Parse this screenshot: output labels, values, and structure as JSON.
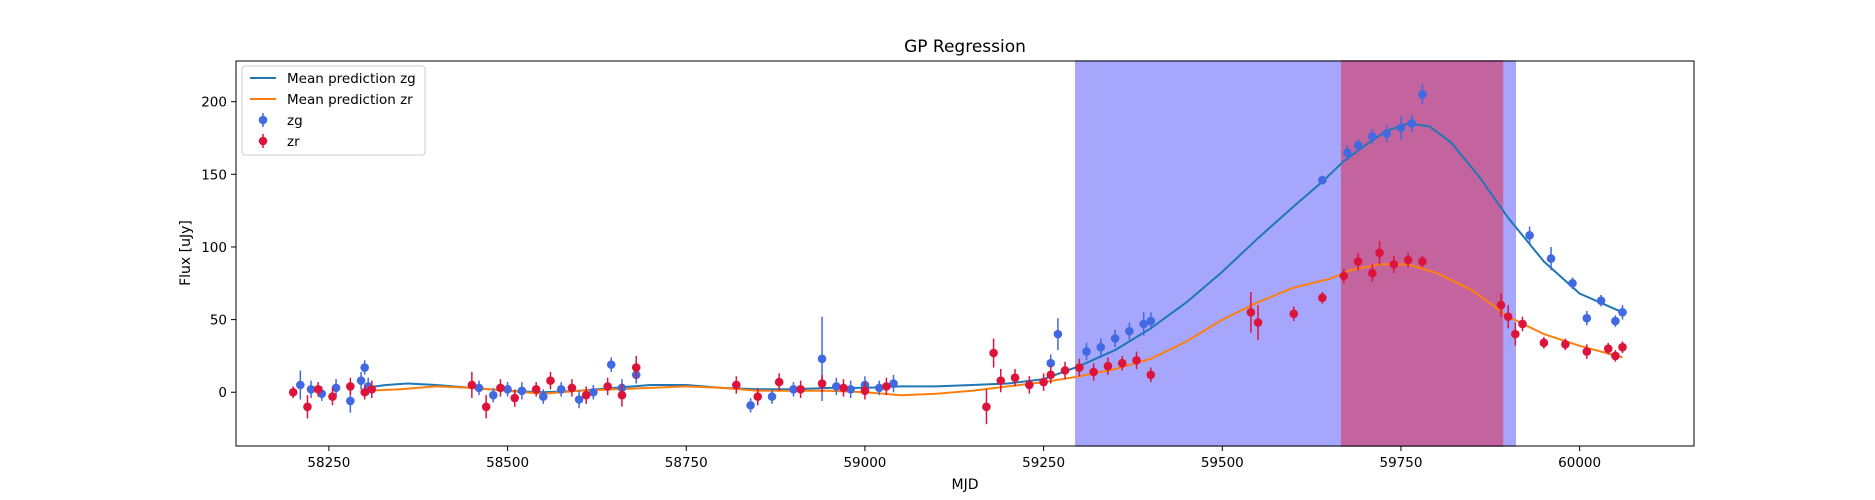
{
  "chart_data": {
    "type": "scatter",
    "title": "GP Regression",
    "xlabel": "MJD",
    "ylabel": "Flux [uJy]",
    "xlim": [
      58120,
      60160
    ],
    "ylim": [
      -37,
      228
    ],
    "xticks": [
      58250,
      58500,
      58750,
      59000,
      59250,
      59500,
      59750,
      60000
    ],
    "yticks": [
      0,
      50,
      100,
      150,
      200
    ],
    "grid": false,
    "legend_location": "upper left",
    "legend": [
      "Mean prediction zg",
      "Mean prediction zr",
      "zg",
      "zr"
    ],
    "shaded_regions": [
      {
        "x0": 59295,
        "x1": 59910,
        "color": "#a6a6fc"
      },
      {
        "x0": 59667,
        "x1": 59892,
        "color": "#c4649f"
      }
    ],
    "series": [
      {
        "name": "Mean prediction zg",
        "kind": "line",
        "color": "#1f77b4",
        "x": [
          58300,
          58330,
          58360,
          58400,
          58450,
          58500,
          58550,
          58600,
          58650,
          58700,
          58750,
          58800,
          58850,
          58900,
          58950,
          59000,
          59050,
          59100,
          59150,
          59200,
          59250,
          59300,
          59350,
          59400,
          59450,
          59500,
          59550,
          59600,
          59640,
          59670,
          59700,
          59730,
          59760,
          59790,
          59820,
          59860,
          59900,
          59950,
          60000,
          60060
        ],
        "y": [
          3,
          5,
          6,
          5,
          3,
          1,
          0,
          1,
          3,
          5,
          5,
          3,
          2,
          2,
          3,
          3,
          4,
          4,
          5,
          6,
          9,
          18,
          29,
          44,
          62,
          83,
          106,
          128,
          145,
          159,
          170,
          180,
          185,
          183,
          172,
          148,
          120,
          90,
          68,
          55
        ]
      },
      {
        "name": "Mean prediction zr",
        "kind": "line",
        "color": "#ff7f0e",
        "x": [
          58300,
          58350,
          58400,
          58450,
          58500,
          58550,
          58600,
          58650,
          58700,
          58750,
          58800,
          58850,
          58900,
          58950,
          59000,
          59050,
          59100,
          59150,
          59200,
          59250,
          59300,
          59350,
          59400,
          59450,
          59500,
          59550,
          59600,
          59650,
          59680,
          59720,
          59760,
          59800,
          59850,
          59900,
          59950,
          60000,
          60060
        ],
        "y": [
          1,
          2,
          4,
          3,
          1,
          -1,
          1,
          2,
          3,
          4,
          3,
          1,
          1,
          1,
          0,
          -2,
          -1,
          1,
          4,
          7,
          11,
          16,
          23,
          35,
          50,
          62,
          72,
          78,
          84,
          88,
          88,
          82,
          70,
          52,
          40,
          32,
          24
        ]
      },
      {
        "name": "zg",
        "kind": "scatter",
        "color": "#4169e1",
        "x": [
          58210,
          58225,
          58240,
          58260,
          58280,
          58295,
          58300,
          58305,
          58460,
          58480,
          58500,
          58520,
          58550,
          58575,
          58600,
          58620,
          58645,
          58660,
          58680,
          58840,
          58870,
          58900,
          58940,
          58960,
          58980,
          59000,
          59020,
          59040,
          59260,
          59270,
          59310,
          59330,
          59350,
          59370,
          59390,
          59400,
          59640,
          59675,
          59690,
          59710,
          59730,
          59750,
          59765,
          59780,
          59930,
          59960,
          59990,
          60010,
          60030,
          60050,
          60060
        ],
        "y": [
          5,
          2,
          -1,
          3,
          -6,
          8,
          17,
          4,
          3,
          -2,
          2,
          1,
          -3,
          2,
          -5,
          0,
          19,
          3,
          12,
          -9,
          -3,
          2,
          23,
          4,
          2,
          5,
          3,
          6,
          20,
          40,
          28,
          31,
          37,
          42,
          47,
          49,
          146,
          165,
          170,
          176,
          178,
          182,
          185,
          205,
          108,
          92,
          75,
          51,
          63,
          49,
          55
        ],
        "yerr": [
          10,
          6,
          5,
          6,
          8,
          6,
          5,
          6,
          5,
          5,
          5,
          6,
          5,
          5,
          6,
          5,
          5,
          6,
          6,
          5,
          5,
          5,
          29,
          6,
          6,
          6,
          5,
          6,
          6,
          11,
          6,
          6,
          6,
          6,
          8,
          6,
          3,
          5,
          4,
          5,
          6,
          8,
          6,
          7,
          6,
          8,
          4,
          5,
          4,
          4,
          5
        ]
      },
      {
        "name": "zr",
        "kind": "scatter",
        "color": "#dc143c",
        "x": [
          58200,
          58220,
          58235,
          58255,
          58280,
          58300,
          58310,
          58450,
          58470,
          58490,
          58510,
          58540,
          58560,
          58590,
          58610,
          58640,
          58660,
          58680,
          58820,
          58850,
          58880,
          58910,
          58940,
          58970,
          59000,
          59030,
          59170,
          59180,
          59190,
          59210,
          59230,
          59250,
          59260,
          59280,
          59300,
          59320,
          59340,
          59360,
          59380,
          59400,
          59540,
          59550,
          59600,
          59640,
          59670,
          59690,
          59710,
          59720,
          59740,
          59760,
          59780,
          59890,
          59900,
          59910,
          59920,
          59950,
          59980,
          60010,
          60040,
          60050,
          60060
        ],
        "y": [
          0,
          -10,
          2,
          -3,
          4,
          0,
          2,
          5,
          -10,
          3,
          -4,
          2,
          8,
          3,
          -2,
          4,
          -2,
          17,
          5,
          -3,
          7,
          2,
          6,
          3,
          1,
          4,
          -10,
          27,
          8,
          10,
          5,
          7,
          12,
          15,
          17,
          14,
          18,
          20,
          22,
          12,
          55,
          48,
          54,
          65,
          80,
          90,
          82,
          96,
          88,
          91,
          90,
          60,
          52,
          40,
          47,
          34,
          33,
          28,
          30,
          25,
          31
        ],
        "yerr": [
          4,
          8,
          5,
          6,
          6,
          5,
          6,
          9,
          8,
          6,
          6,
          5,
          6,
          6,
          6,
          6,
          8,
          8,
          6,
          6,
          6,
          6,
          6,
          6,
          6,
          6,
          12,
          10,
          8,
          6,
          6,
          6,
          6,
          6,
          6,
          6,
          6,
          5,
          6,
          5,
          14,
          12,
          5,
          4,
          5,
          6,
          6,
          8,
          6,
          5,
          4,
          8,
          8,
          8,
          5,
          4,
          4,
          5,
          4,
          4,
          4
        ]
      }
    ]
  }
}
